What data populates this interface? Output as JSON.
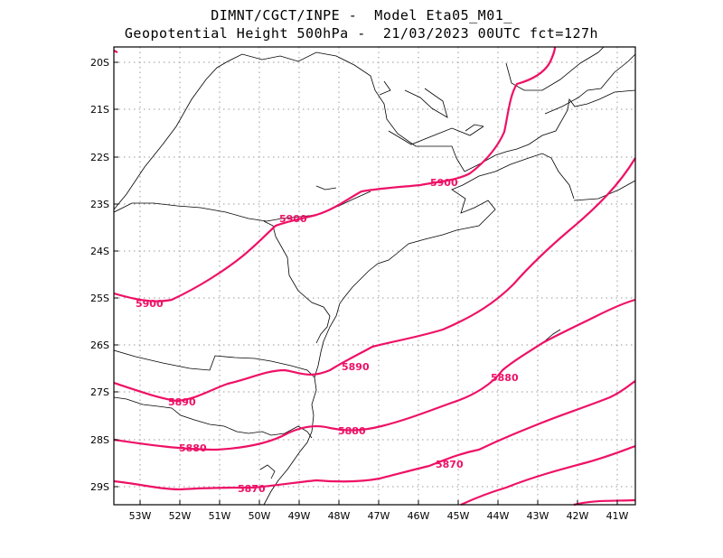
{
  "title": {
    "line1": "DIMNT/CGCT/INPE -  Model Eta05_M01_",
    "line2": "Geopotential Height 500hPa -  21/03/2023 00UTC fct=127h"
  },
  "axes": {
    "lat_labels": [
      "20S",
      "21S",
      "22S",
      "23S",
      "24S",
      "25S",
      "26S",
      "27S",
      "28S",
      "29S"
    ],
    "lon_labels": [
      "53W",
      "52W",
      "51W",
      "50W",
      "49W",
      "48W",
      "47W",
      "46W",
      "45W",
      "44W",
      "43W",
      "42W",
      "41W"
    ]
  },
  "contour_labels": [
    {
      "id": "c5900a",
      "text": "5900"
    },
    {
      "id": "c5900b",
      "text": "5900"
    },
    {
      "id": "c5900c",
      "text": "5900"
    },
    {
      "id": "c5890a",
      "text": "5890"
    },
    {
      "id": "c5890b",
      "text": "5890"
    },
    {
      "id": "c5880a",
      "text": "5880"
    },
    {
      "id": "c5880b",
      "text": "5880"
    },
    {
      "id": "c5880c",
      "text": "5880"
    },
    {
      "id": "c5870a",
      "text": "5870"
    },
    {
      "id": "c5870b",
      "text": "5870"
    }
  ],
  "colors": {
    "contour": "#ee1166",
    "grid": "#9a9a9a",
    "coastline": "#000000"
  }
}
